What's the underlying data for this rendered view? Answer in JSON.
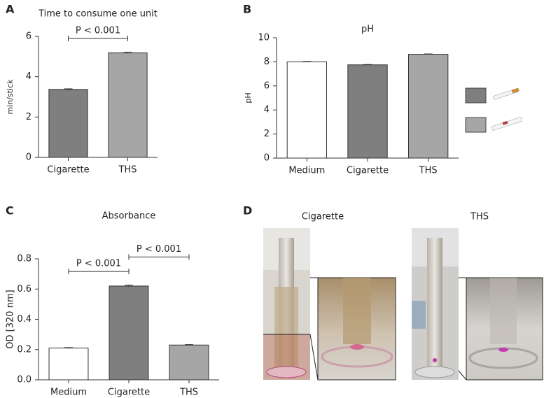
{
  "chart_data": [
    {
      "type": "bar",
      "panel_label": "A",
      "title": "Time to consume one unit",
      "ylabel": "min/stick",
      "categories": [
        "Cigarette",
        "THS"
      ],
      "values": [
        3.37,
        5.18
      ],
      "errors": [
        0.03,
        0.03
      ],
      "colors": [
        "#7f7f7f",
        "#a6a6a6"
      ],
      "ylim": [
        0,
        6
      ],
      "yticks": [
        0,
        2,
        4,
        6
      ],
      "annotations": [
        {
          "text": "P < 0.001",
          "from": "Cigarette",
          "to": "THS"
        }
      ]
    },
    {
      "type": "bar",
      "panel_label": "B",
      "title": "pH",
      "ylabel": "pH",
      "categories": [
        "Medium",
        "Cigarette",
        "THS"
      ],
      "values": [
        8.0,
        7.75,
        8.63
      ],
      "errors": [
        0.03,
        0.03,
        0.03
      ],
      "colors": [
        "#ffffff",
        "#7f7f7f",
        "#a6a6a6"
      ],
      "ylim": [
        0,
        10
      ],
      "yticks": [
        0,
        2,
        4,
        6,
        8,
        10
      ]
    },
    {
      "type": "bar",
      "panel_label": "C",
      "title": "Absorbance",
      "ylabel": "OD [320 nm]",
      "categories": [
        "Medium",
        "Cigarette",
        "THS"
      ],
      "values": [
        0.21,
        0.62,
        0.23
      ],
      "errors": [
        0.003,
        0.006,
        0.003
      ],
      "colors": [
        "#ffffff",
        "#7f7f7f",
        "#a6a6a6"
      ],
      "ylim": [
        0,
        0.8
      ],
      "yticks": [
        {
          "value": 0,
          "label": "0.0"
        },
        0.2,
        0.4,
        0.6,
        0.8
      ],
      "annotations": [
        {
          "text": "P < 0.001",
          "from": "Medium",
          "to": "Cigarette"
        },
        {
          "text": "P < 0.001",
          "from": "Cigarette",
          "to": "THS"
        }
      ]
    }
  ],
  "photo_panel": {
    "panel_label": "D",
    "captions": [
      "Cigarette",
      "THS"
    ]
  }
}
